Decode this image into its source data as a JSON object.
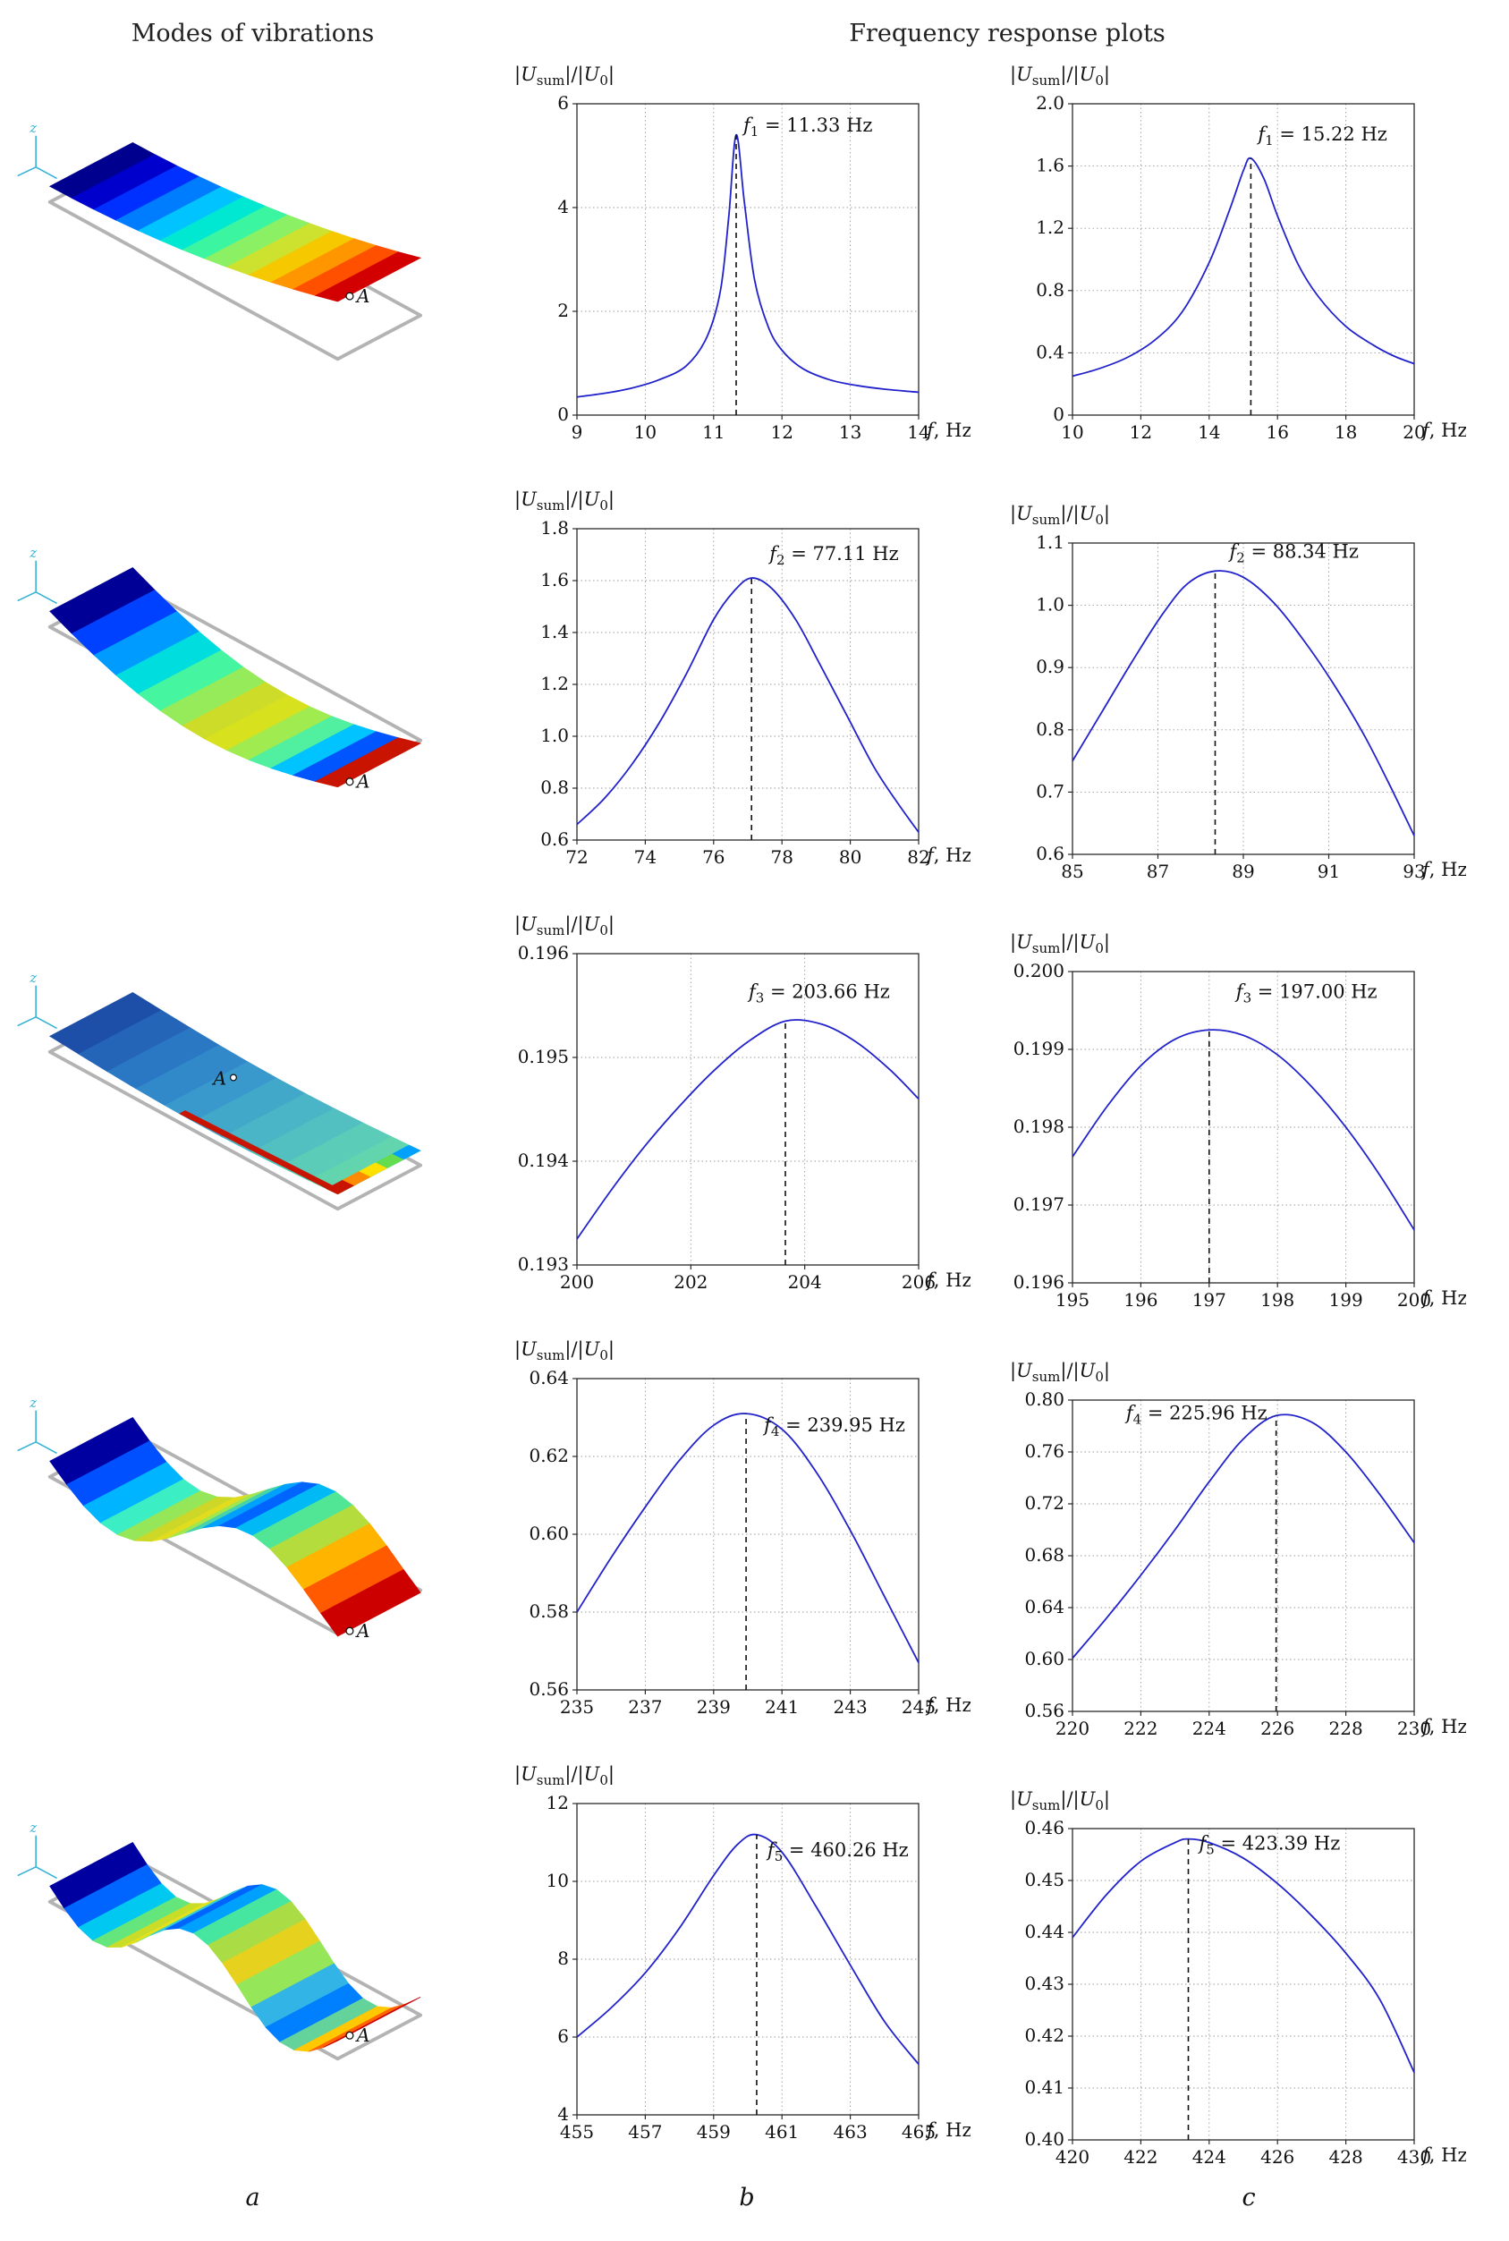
{
  "figure": {
    "header_left": "Modes of vibrations",
    "header_right": "Frequency response plots",
    "footer_labels": [
      "a",
      "b",
      "c"
    ]
  },
  "modes": [
    {
      "name": "mode-1",
      "point_label": "A",
      "axis_label": "z",
      "colors": [
        "#00008f",
        "#0000cd",
        "#0030ff",
        "#007dff",
        "#00c3ff",
        "#00e8d2",
        "#3cf5a0",
        "#8cf064",
        "#cde22e",
        "#f5c800",
        "#ff9600",
        "#ff5000",
        "#d20000"
      ]
    },
    {
      "name": "mode-2",
      "point_label": "A",
      "axis_label": "z",
      "colors": [
        "#000096",
        "#0041ff",
        "#009bff",
        "#00ddde",
        "#46f5a0",
        "#96eb5a",
        "#cddc28",
        "#d7e11e",
        "#a0eb50",
        "#50f0a0",
        "#00c3ff",
        "#0055ff",
        "#c81400"
      ]
    },
    {
      "name": "mode-3",
      "point_label": "A",
      "axis_label": "z",
      "colors": [
        "#1e4fa8",
        "#2465b8",
        "#2a78c4",
        "#3289ca",
        "#3a99cc",
        "#42a8ca",
        "#4ab5c6",
        "#52c0c0",
        "#5accb8",
        "#62d5ae"
      ],
      "edge_stripe": "#c81400",
      "edge_colors": [
        "#c81400",
        "#ff8c00",
        "#ffe100",
        "#64dc50",
        "#00a0ff"
      ]
    },
    {
      "name": "mode-4",
      "point_label": "A",
      "axis_label": "z",
      "colors": [
        "#0000a0",
        "#0050ff",
        "#00b4ff",
        "#3ceec3",
        "#96e65a",
        "#cdd728",
        "#e1dc1e",
        "#a0e650",
        "#46d2aa",
        "#00a0ff",
        "#0064ff",
        "#00b9f5",
        "#50e696",
        "#b4dc3c",
        "#ffb400",
        "#ff5a00",
        "#cd0000"
      ]
    },
    {
      "name": "mode-5",
      "point_label": "A",
      "axis_label": "z",
      "colors": [
        "#0000a0",
        "#0064ff",
        "#00c8f0",
        "#64e67d",
        "#c8dc28",
        "#e6e11e",
        "#96e65a",
        "#32c8dc",
        "#0064ff",
        "#00a0ff",
        "#46e6a0",
        "#aadc46",
        "#e6d21e",
        "#96e65a",
        "#32b4e6",
        "#0080ff",
        "#64d29b",
        "#ffc800",
        "#ff6400",
        "#c80000"
      ]
    }
  ],
  "style": {
    "line_color": "#2222cc",
    "grid_color": "#9a9a9a",
    "box_color": "#2a2a2a",
    "dash_color": "#111111"
  },
  "chart_data": [
    {
      "id": "b1",
      "type": "line",
      "column": "b",
      "row": 1,
      "ylabel": "|*U*_{sum}|/|*U*_{0}|",
      "xlabel": "*f*, Hz",
      "annotation": "*f*_{1} = 11.33 Hz",
      "ann_dx": 8,
      "ann_dy": -4,
      "ann_anchor": "start",
      "peak": {
        "x": 11.33,
        "y": 5.4
      },
      "xlim": [
        9,
        14
      ],
      "ylim": [
        0,
        6
      ],
      "xticks": [
        9,
        10,
        11,
        12,
        13,
        14
      ],
      "xtick_labels": [
        "9",
        "10",
        "11",
        "12",
        "13",
        "14"
      ],
      "yticks": [
        0,
        2,
        4,
        6
      ],
      "ytick_labels": [
        "0",
        "2",
        "4",
        "6"
      ],
      "x": [
        9,
        9.4,
        9.8,
        10.2,
        10.6,
        10.9,
        11.1,
        11.22,
        11.33,
        11.45,
        11.6,
        11.8,
        12.0,
        12.3,
        12.7,
        13.1,
        13.5,
        14
      ],
      "y": [
        0.35,
        0.42,
        0.52,
        0.68,
        0.95,
        1.5,
        2.4,
        3.8,
        5.4,
        4.1,
        2.6,
        1.7,
        1.25,
        0.9,
        0.68,
        0.57,
        0.5,
        0.44
      ]
    },
    {
      "id": "c1",
      "type": "line",
      "column": "c",
      "row": 1,
      "ylabel": "|*U*_{sum}|/|*U*_{0}|",
      "xlabel": "*f*, Hz",
      "annotation": "*f*_{1} = 15.22 Hz",
      "ann_dx": 8,
      "ann_dy": -20,
      "ann_anchor": "start",
      "peak": {
        "x": 15.22,
        "y": 1.65
      },
      "xlim": [
        10,
        20
      ],
      "ylim": [
        0,
        2.0
      ],
      "xticks": [
        10,
        12,
        14,
        16,
        18,
        20
      ],
      "xtick_labels": [
        "10",
        "12",
        "14",
        "16",
        "18",
        "20"
      ],
      "yticks": [
        0,
        0.4,
        0.8,
        1.2,
        1.6,
        2.0
      ],
      "ytick_labels": [
        "0",
        "0.4",
        "0.8",
        "1.2",
        "1.6",
        "2.0"
      ],
      "x": [
        10,
        10.8,
        11.6,
        12.4,
        13.2,
        14.0,
        14.6,
        15.0,
        15.22,
        15.6,
        16.0,
        16.6,
        17.2,
        18.0,
        18.8,
        19.4,
        20
      ],
      "y": [
        0.25,
        0.3,
        0.37,
        0.48,
        0.66,
        0.98,
        1.32,
        1.57,
        1.65,
        1.52,
        1.28,
        0.97,
        0.76,
        0.57,
        0.45,
        0.38,
        0.33
      ]
    },
    {
      "id": "b2",
      "type": "line",
      "column": "b",
      "row": 2,
      "ylabel": "|*U*_{sum}|/|*U*_{0}|",
      "xlabel": "*f*, Hz",
      "annotation": "*f*_{2} = 77.11 Hz",
      "ann_dx": 20,
      "ann_dy": -20,
      "ann_anchor": "start",
      "peak": {
        "x": 77.11,
        "y": 1.61
      },
      "xlim": [
        72,
        82
      ],
      "ylim": [
        0.6,
        1.8
      ],
      "xticks": [
        72,
        74,
        76,
        78,
        80,
        82
      ],
      "xtick_labels": [
        "72",
        "74",
        "76",
        "78",
        "80",
        "82"
      ],
      "yticks": [
        0.6,
        0.8,
        1.0,
        1.2,
        1.4,
        1.6,
        1.8
      ],
      "ytick_labels": [
        "0.6",
        "0.8",
        "1.0",
        "1.2",
        "1.4",
        "1.6",
        "1.8"
      ],
      "x": [
        72,
        72.8,
        73.6,
        74.4,
        75.2,
        76.0,
        76.6,
        77.11,
        77.7,
        78.4,
        79.1,
        79.9,
        80.7,
        81.4,
        82
      ],
      "y": [
        0.66,
        0.76,
        0.89,
        1.05,
        1.24,
        1.45,
        1.56,
        1.61,
        1.57,
        1.45,
        1.28,
        1.08,
        0.88,
        0.74,
        0.63
      ]
    },
    {
      "id": "c2",
      "type": "line",
      "column": "c",
      "row": 2,
      "ylabel": "|*U*_{sum}|/|*U*_{0}|",
      "xlabel": "*f*, Hz",
      "annotation": "*f*_{2} = 88.34 Hz",
      "ann_dx": 16,
      "ann_dy": -15,
      "ann_anchor": "start",
      "peak": {
        "x": 88.34,
        "y": 1.055
      },
      "xlim": [
        85,
        93
      ],
      "ylim": [
        0.6,
        1.1
      ],
      "xticks": [
        85,
        87,
        89,
        91,
        93
      ],
      "xtick_labels": [
        "85",
        "87",
        "89",
        "91",
        "93"
      ],
      "yticks": [
        0.6,
        0.7,
        0.8,
        0.9,
        1.0,
        1.1
      ],
      "ytick_labels": [
        "0.6",
        "0.7",
        "0.8",
        "0.9",
        "1.0",
        "1.1"
      ],
      "x": [
        85,
        85.7,
        86.4,
        87.1,
        87.7,
        88.34,
        89.0,
        89.7,
        90.4,
        91.1,
        91.8,
        92.4,
        93
      ],
      "y": [
        0.75,
        0.83,
        0.91,
        0.985,
        1.035,
        1.055,
        1.045,
        1.005,
        0.945,
        0.875,
        0.795,
        0.715,
        0.63
      ]
    },
    {
      "id": "b3",
      "type": "line",
      "column": "b",
      "row": 3,
      "ylabel": "|*U*_{sum}|/|*U*_{0}|",
      "xlabel": "*f*, Hz",
      "annotation": "*f*_{3} = 203.66 Hz",
      "ann_dx": -41,
      "ann_dy": -26,
      "ann_anchor": "start",
      "peak": {
        "x": 203.66,
        "y": 0.19535
      },
      "xlim": [
        200,
        206
      ],
      "ylim": [
        0.193,
        0.196
      ],
      "xticks": [
        200,
        202,
        204,
        206
      ],
      "xtick_labels": [
        "200",
        "202",
        "204",
        "206"
      ],
      "yticks": [
        0.193,
        0.194,
        0.195,
        0.196
      ],
      "ytick_labels": [
        "0.193",
        "0.194",
        "0.195",
        "0.196"
      ],
      "x": [
        200,
        200.6,
        201.2,
        201.8,
        202.4,
        203.0,
        203.66,
        204.3,
        204.9,
        205.5,
        206
      ],
      "y": [
        0.19325,
        0.19372,
        0.19415,
        0.19453,
        0.19487,
        0.19515,
        0.19535,
        0.19532,
        0.19515,
        0.19488,
        0.1946
      ]
    },
    {
      "id": "c3",
      "type": "line",
      "column": "c",
      "row": 3,
      "ylabel": "|*U*_{sum}|/|*U*_{0}|",
      "xlabel": "*f*, Hz",
      "annotation": "*f*_{3} = 197.00 Hz",
      "ann_dx": 30,
      "ann_dy": -36,
      "ann_anchor": "start",
      "peak": {
        "x": 197.0,
        "y": 0.19925
      },
      "xlim": [
        195,
        200
      ],
      "ylim": [
        0.196,
        0.2
      ],
      "xticks": [
        195,
        196,
        197,
        198,
        199,
        200
      ],
      "xtick_labels": [
        "195",
        "196",
        "197",
        "198",
        "199",
        "200"
      ],
      "yticks": [
        0.196,
        0.197,
        0.198,
        0.199,
        0.2
      ],
      "ytick_labels": [
        "0.196",
        "0.197",
        "0.198",
        "0.199",
        "0.200"
      ],
      "x": [
        195,
        195.5,
        196,
        196.5,
        197,
        197.5,
        198,
        198.5,
        199,
        199.5,
        200
      ],
      "y": [
        0.19762,
        0.19826,
        0.19879,
        0.19913,
        0.19925,
        0.19918,
        0.19893,
        0.19852,
        0.198,
        0.19738,
        0.19668
      ]
    },
    {
      "id": "b4",
      "type": "line",
      "column": "b",
      "row": 4,
      "ylabel": "|*U*_{sum}|/|*U*_{0}|",
      "xlabel": "*f*, Hz",
      "annotation": "*f*_{4} = 239.95 Hz",
      "ann_dx": 20,
      "ann_dy": 20,
      "ann_anchor": "start",
      "peak": {
        "x": 239.95,
        "y": 0.631
      },
      "xlim": [
        235,
        245
      ],
      "ylim": [
        0.56,
        0.64
      ],
      "xticks": [
        235,
        237,
        239,
        241,
        243,
        245
      ],
      "xtick_labels": [
        "235",
        "237",
        "239",
        "241",
        "243",
        "245"
      ],
      "yticks": [
        0.56,
        0.58,
        0.6,
        0.62,
        0.64
      ],
      "ytick_labels": [
        "0.56",
        "0.58",
        "0.60",
        "0.62",
        "0.64"
      ],
      "x": [
        235,
        236,
        237,
        238,
        239,
        239.95,
        241,
        242,
        243,
        244,
        245
      ],
      "y": [
        0.58,
        0.594,
        0.607,
        0.619,
        0.628,
        0.631,
        0.627,
        0.616,
        0.601,
        0.584,
        0.567
      ]
    },
    {
      "id": "c4",
      "type": "line",
      "column": "c",
      "row": 4,
      "ylabel": "|*U*_{sum}|/|*U*_{0}|",
      "xlabel": "*f*, Hz",
      "annotation": "*f*_{4} = 225.96 Hz",
      "ann_dx": -10,
      "ann_dy": 4,
      "ann_anchor": "end",
      "peak": {
        "x": 225.96,
        "y": 0.788
      },
      "xlim": [
        220,
        230
      ],
      "ylim": [
        0.56,
        0.8
      ],
      "xticks": [
        220,
        222,
        224,
        226,
        228,
        230
      ],
      "xtick_labels": [
        "220",
        "222",
        "224",
        "226",
        "228",
        "230"
      ],
      "yticks": [
        0.56,
        0.6,
        0.64,
        0.68,
        0.72,
        0.76,
        0.8
      ],
      "ytick_labels": [
        "0.56",
        "0.60",
        "0.64",
        "0.68",
        "0.72",
        "0.76",
        "0.80"
      ],
      "x": [
        220,
        221,
        222,
        223,
        224,
        225,
        225.96,
        227,
        228,
        229,
        230
      ],
      "y": [
        0.601,
        0.632,
        0.665,
        0.7,
        0.737,
        0.77,
        0.788,
        0.783,
        0.76,
        0.727,
        0.69
      ]
    },
    {
      "id": "b5",
      "type": "line",
      "column": "b",
      "row": 5,
      "ylabel": "|*U*_{sum}|/|*U*_{0}|",
      "xlabel": "*f*, Hz",
      "annotation": "*f*_{5} = 460.26 Hz",
      "ann_dx": 12,
      "ann_dy": 24,
      "ann_anchor": "start",
      "peak": {
        "x": 460.26,
        "y": 11.2
      },
      "xlim": [
        455,
        465
      ],
      "ylim": [
        4,
        12
      ],
      "xticks": [
        455,
        457,
        459,
        461,
        463,
        465
      ],
      "xtick_labels": [
        "455",
        "457",
        "459",
        "461",
        "463",
        "465"
      ],
      "yticks": [
        4,
        6,
        8,
        10,
        12
      ],
      "ytick_labels": [
        "4",
        "6",
        "8",
        "10",
        "12"
      ],
      "x": [
        455,
        456,
        457,
        458,
        459,
        459.7,
        460.26,
        461,
        462,
        463,
        464,
        465
      ],
      "y": [
        6.0,
        6.75,
        7.65,
        8.8,
        10.15,
        10.95,
        11.2,
        10.75,
        9.35,
        7.85,
        6.4,
        5.3
      ]
    },
    {
      "id": "c5",
      "type": "line",
      "column": "c",
      "row": 5,
      "ylabel": "|*U*_{sum}|/|*U*_{0}|",
      "xlabel": "*f*, Hz",
      "annotation": "*f*_{5} = 423.39 Hz",
      "ann_dx": 12,
      "ann_dy": 12,
      "ann_anchor": "start",
      "peak": {
        "x": 423.39,
        "y": 0.458
      },
      "xlim": [
        420,
        430
      ],
      "ylim": [
        0.4,
        0.46
      ],
      "xticks": [
        420,
        422,
        424,
        426,
        428,
        430
      ],
      "xtick_labels": [
        "420",
        "422",
        "424",
        "426",
        "428",
        "430"
      ],
      "yticks": [
        0.4,
        0.41,
        0.42,
        0.43,
        0.44,
        0.45,
        0.46
      ],
      "ytick_labels": [
        "0.40",
        "0.41",
        "0.42",
        "0.43",
        "0.44",
        "0.45",
        "0.46"
      ],
      "x": [
        420,
        421,
        422,
        423,
        423.39,
        424,
        425,
        426,
        427,
        428,
        429,
        430
      ],
      "y": [
        0.439,
        0.4473,
        0.4537,
        0.4573,
        0.458,
        0.4573,
        0.4543,
        0.4494,
        0.4432,
        0.436,
        0.427,
        0.413
      ]
    }
  ]
}
